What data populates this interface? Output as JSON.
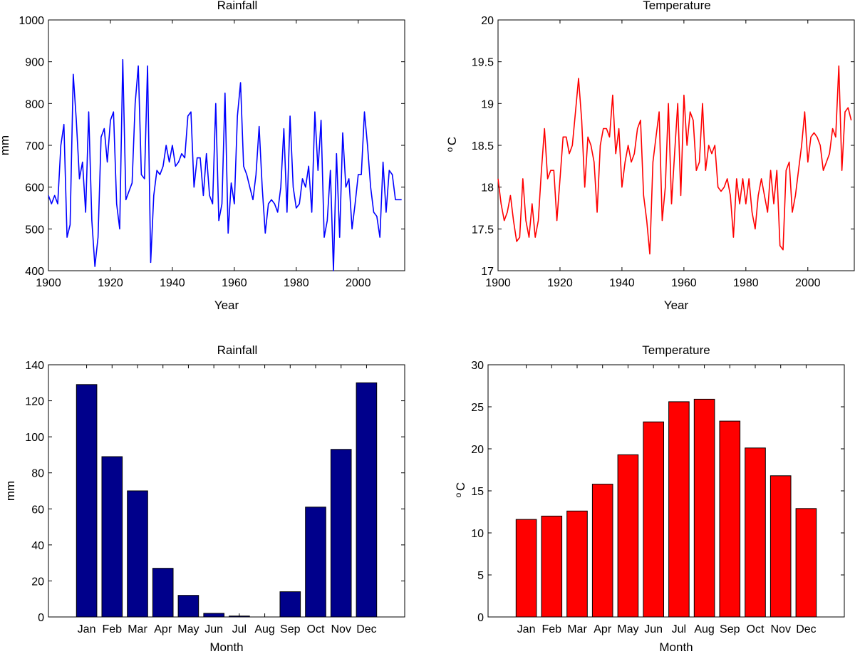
{
  "chart_data": [
    {
      "type": "line",
      "title": "Rainfall",
      "xlabel": "Year",
      "ylabel": "mm",
      "xlim": [
        1900,
        2015
      ],
      "ylim": [
        400,
        1000
      ],
      "xticks": [
        1900,
        1920,
        1940,
        1960,
        1980,
        2000
      ],
      "yticks": [
        400,
        500,
        600,
        700,
        800,
        900,
        1000
      ],
      "grid": false,
      "color": "#0000ff",
      "series": [
        {
          "x": [
            1900,
            1901,
            1902,
            1903,
            1904,
            1905,
            1906,
            1907,
            1908,
            1909,
            1910,
            1911,
            1912,
            1913,
            1914,
            1915,
            1916,
            1917,
            1918,
            1919,
            1920,
            1921,
            1922,
            1923,
            1924,
            1925,
            1926,
            1927,
            1928,
            1929,
            1930,
            1931,
            1932,
            1933,
            1934,
            1935,
            1936,
            1937,
            1938,
            1939,
            1940,
            1941,
            1942,
            1943,
            1944,
            1945,
            1946,
            1947,
            1948,
            1949,
            1950,
            1951,
            1952,
            1953,
            1954,
            1955,
            1956,
            1957,
            1958,
            1959,
            1960,
            1961,
            1962,
            1963,
            1964,
            1965,
            1966,
            1967,
            1968,
            1969,
            1970,
            1971,
            1972,
            1973,
            1974,
            1975,
            1976,
            1977,
            1978,
            1979,
            1980,
            1981,
            1982,
            1983,
            1984,
            1985,
            1986,
            1987,
            1988,
            1989,
            1990,
            1991,
            1992,
            1993,
            1994,
            1995,
            1996,
            1997,
            1998,
            1999,
            2000,
            2001,
            2002,
            2003,
            2004,
            2005,
            2006,
            2007,
            2008,
            2009,
            2010,
            2011,
            2012,
            2013,
            2014
          ],
          "values": [
            580,
            560,
            580,
            560,
            700,
            750,
            480,
            510,
            870,
            760,
            620,
            660,
            540,
            780,
            520,
            410,
            480,
            720,
            740,
            660,
            760,
            780,
            560,
            500,
            905,
            570,
            590,
            610,
            800,
            890,
            630,
            620,
            890,
            420,
            580,
            640,
            630,
            650,
            700,
            660,
            700,
            650,
            660,
            680,
            670,
            770,
            780,
            600,
            670,
            670,
            580,
            680,
            580,
            560,
            800,
            520,
            560,
            825,
            490,
            610,
            560,
            770,
            850,
            650,
            630,
            600,
            570,
            630,
            745,
            600,
            490,
            560,
            570,
            560,
            540,
            600,
            740,
            540,
            770,
            600,
            550,
            560,
            620,
            600,
            650,
            540,
            780,
            640,
            760,
            480,
            520,
            640,
            400,
            680,
            480,
            730,
            600,
            620,
            500,
            560,
            630,
            630,
            780,
            700,
            600,
            540,
            530,
            480,
            660,
            540,
            640,
            630,
            570,
            570,
            570
          ]
        }
      ]
    },
    {
      "type": "line",
      "title": "Temperature",
      "xlabel": "Year",
      "ylabel_main": "C",
      "ylabel_sup": "o",
      "xlim": [
        1900,
        2015
      ],
      "ylim": [
        17,
        20
      ],
      "xticks": [
        1900,
        1920,
        1940,
        1960,
        1980,
        2000
      ],
      "yticks": [
        17,
        17.5,
        18,
        18.5,
        19,
        19.5,
        20
      ],
      "grid": false,
      "color": "#ff0000",
      "series": [
        {
          "x": [
            1900,
            1901,
            1902,
            1903,
            1904,
            1905,
            1906,
            1907,
            1908,
            1909,
            1910,
            1911,
            1912,
            1913,
            1914,
            1915,
            1916,
            1917,
            1918,
            1919,
            1920,
            1921,
            1922,
            1923,
            1924,
            1925,
            1926,
            1927,
            1928,
            1929,
            1930,
            1931,
            1932,
            1933,
            1934,
            1935,
            1936,
            1937,
            1938,
            1939,
            1940,
            1941,
            1942,
            1943,
            1944,
            1945,
            1946,
            1947,
            1948,
            1949,
            1950,
            1951,
            1952,
            1953,
            1954,
            1955,
            1956,
            1957,
            1958,
            1959,
            1960,
            1961,
            1962,
            1963,
            1964,
            1965,
            1966,
            1967,
            1968,
            1969,
            1970,
            1971,
            1972,
            1973,
            1974,
            1975,
            1976,
            1977,
            1978,
            1979,
            1980,
            1981,
            1982,
            1983,
            1984,
            1985,
            1986,
            1987,
            1988,
            1989,
            1990,
            1991,
            1992,
            1993,
            1994,
            1995,
            1996,
            1997,
            1998,
            1999,
            2000,
            2001,
            2002,
            2003,
            2004,
            2005,
            2006,
            2007,
            2008,
            2009,
            2010,
            2011,
            2012,
            2013,
            2014
          ],
          "values": [
            18.1,
            17.8,
            17.6,
            17.7,
            17.9,
            17.6,
            17.35,
            17.4,
            18.1,
            17.6,
            17.4,
            17.8,
            17.4,
            17.6,
            18.2,
            18.7,
            18.1,
            18.2,
            18.2,
            17.6,
            18.1,
            18.6,
            18.6,
            18.4,
            18.5,
            18.9,
            19.3,
            18.8,
            18.0,
            18.6,
            18.5,
            18.3,
            17.7,
            18.5,
            18.7,
            18.7,
            18.6,
            19.1,
            18.4,
            18.7,
            18.0,
            18.3,
            18.5,
            18.3,
            18.4,
            18.7,
            18.8,
            17.9,
            17.6,
            17.2,
            18.3,
            18.6,
            18.9,
            17.6,
            18.0,
            19.0,
            17.8,
            18.4,
            19.0,
            17.9,
            19.1,
            18.5,
            18.9,
            18.8,
            18.2,
            18.3,
            19.0,
            18.2,
            18.5,
            18.4,
            18.5,
            18.0,
            17.95,
            18.0,
            18.1,
            17.9,
            17.4,
            18.1,
            17.8,
            18.1,
            17.8,
            18.1,
            17.7,
            17.5,
            17.9,
            18.1,
            17.9,
            17.7,
            18.2,
            17.8,
            18.2,
            17.3,
            17.25,
            18.2,
            18.3,
            17.7,
            17.9,
            18.2,
            18.5,
            18.9,
            18.3,
            18.6,
            18.65,
            18.6,
            18.5,
            18.2,
            18.3,
            18.4,
            18.7,
            18.6,
            19.45,
            18.2,
            18.9,
            18.95,
            18.8
          ]
        }
      ]
    },
    {
      "type": "bar",
      "title": "Rainfall",
      "xlabel": "Month",
      "ylabel": "mm",
      "ylim": [
        0,
        140
      ],
      "yticks": [
        0,
        20,
        40,
        60,
        80,
        100,
        120,
        140
      ],
      "grid": false,
      "color": "#00008b",
      "categories": [
        "Jan",
        "Feb",
        "Mar",
        "Apr",
        "May",
        "Jun",
        "Jul",
        "Aug",
        "Sep",
        "Oct",
        "Nov",
        "Dec"
      ],
      "values": [
        129,
        89,
        70,
        27,
        12,
        2,
        0.5,
        0,
        14,
        61,
        93,
        130
      ]
    },
    {
      "type": "bar",
      "title": "Temperature",
      "xlabel": "Month",
      "ylabel_main": "C",
      "ylabel_sup": "o",
      "ylim": [
        0,
        30
      ],
      "yticks": [
        0,
        5,
        10,
        15,
        20,
        25,
        30
      ],
      "grid": false,
      "color": "#ff0000",
      "categories": [
        "Jan",
        "Feb",
        "Mar",
        "Apr",
        "May",
        "Jun",
        "Jul",
        "Aug",
        "Sep",
        "Oct",
        "Nov",
        "Dec"
      ],
      "values": [
        11.6,
        12.0,
        12.6,
        15.8,
        19.3,
        23.2,
        25.6,
        25.9,
        23.3,
        20.1,
        16.8,
        12.9
      ]
    }
  ]
}
